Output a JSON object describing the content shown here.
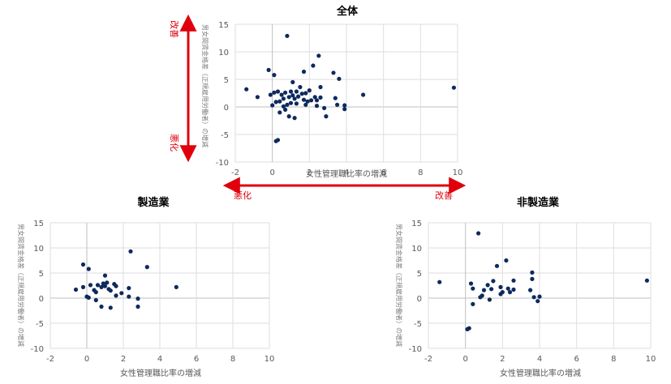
{
  "annotations": {
    "improve_label": "改善",
    "worsen_label": "悪化",
    "arrow_color": "#e0000b"
  },
  "colors": {
    "marker": "#0d2a5e",
    "grid": "#dedede",
    "axis": "#bfbfbf",
    "tick_text": "#595959",
    "ylabel_text": "#7f7f7f"
  },
  "chart_data": [
    {
      "id": "overall",
      "type": "scatter",
      "title": "全体",
      "xlabel": "女性管理職比率の増減",
      "ylabel": "男女間賃金格差（正規雇用労働者）の増減",
      "xlim": [
        -2,
        10
      ],
      "ylim": [
        -10,
        15
      ],
      "xticks": [
        -2,
        0,
        2,
        4,
        6,
        8,
        10
      ],
      "yticks": [
        -10,
        -5,
        0,
        5,
        10,
        15
      ],
      "grid": true,
      "points": [
        [
          -1.4,
          3.2
        ],
        [
          -0.8,
          1.8
        ],
        [
          -0.2,
          6.7
        ],
        [
          -0.1,
          2.2
        ],
        [
          0.0,
          0.3
        ],
        [
          0.1,
          5.8
        ],
        [
          0.1,
          2.6
        ],
        [
          0.2,
          0.9
        ],
        [
          0.2,
          -6.2
        ],
        [
          0.3,
          -6.0
        ],
        [
          0.3,
          2.8
        ],
        [
          0.4,
          1.0
        ],
        [
          0.4,
          -1.0
        ],
        [
          0.5,
          2.2
        ],
        [
          0.6,
          1.5
        ],
        [
          0.6,
          0.1
        ],
        [
          0.7,
          2.6
        ],
        [
          0.7,
          -0.5
        ],
        [
          0.8,
          12.9
        ],
        [
          0.8,
          0.4
        ],
        [
          0.9,
          1.8
        ],
        [
          0.9,
          -1.7
        ],
        [
          1.0,
          2.8
        ],
        [
          1.0,
          0.7
        ],
        [
          1.1,
          4.5
        ],
        [
          1.1,
          2.1
        ],
        [
          1.2,
          1.5
        ],
        [
          1.2,
          -2.0
        ],
        [
          1.3,
          2.8
        ],
        [
          1.3,
          0.6
        ],
        [
          1.4,
          1.9
        ],
        [
          1.5,
          3.6
        ],
        [
          1.6,
          2.4
        ],
        [
          1.7,
          1.3
        ],
        [
          1.7,
          6.4
        ],
        [
          1.8,
          2.5
        ],
        [
          1.8,
          0.4
        ],
        [
          1.9,
          1.0
        ],
        [
          2.0,
          3.0
        ],
        [
          2.1,
          1.2
        ],
        [
          2.2,
          7.5
        ],
        [
          2.3,
          1.8
        ],
        [
          2.4,
          1.2
        ],
        [
          2.4,
          0.2
        ],
        [
          2.5,
          9.3
        ],
        [
          2.6,
          3.6
        ],
        [
          2.6,
          1.7
        ],
        [
          2.8,
          -0.2
        ],
        [
          2.9,
          -1.7
        ],
        [
          3.3,
          6.2
        ],
        [
          3.4,
          1.6
        ],
        [
          3.5,
          0.4
        ],
        [
          3.6,
          5.1
        ],
        [
          3.9,
          0.3
        ],
        [
          3.9,
          -0.4
        ],
        [
          4.9,
          2.2
        ],
        [
          9.8,
          3.5
        ]
      ]
    },
    {
      "id": "manufacturing",
      "type": "scatter",
      "title": "製造業",
      "xlabel": "女性管理職比率の増減",
      "ylabel": "男女間賃金格差（正規雇用労働者）の増減",
      "xlim": [
        -2,
        10
      ],
      "ylim": [
        -10,
        15
      ],
      "xticks": [
        -2,
        0,
        2,
        4,
        6,
        8,
        10
      ],
      "yticks": [
        -10,
        -5,
        0,
        5,
        10,
        15
      ],
      "grid": true,
      "points": [
        [
          -0.6,
          1.7
        ],
        [
          -0.2,
          6.7
        ],
        [
          -0.2,
          2.2
        ],
        [
          0.0,
          0.3
        ],
        [
          0.1,
          5.8
        ],
        [
          0.1,
          0.1
        ],
        [
          0.2,
          2.6
        ],
        [
          0.4,
          1.6
        ],
        [
          0.5,
          1.2
        ],
        [
          0.5,
          -0.4
        ],
        [
          0.6,
          2.6
        ],
        [
          0.8,
          2.2
        ],
        [
          0.8,
          -1.7
        ],
        [
          0.9,
          2.9
        ],
        [
          1.0,
          4.5
        ],
        [
          1.0,
          2.4
        ],
        [
          1.1,
          3.1
        ],
        [
          1.2,
          1.8
        ],
        [
          1.3,
          1.5
        ],
        [
          1.3,
          -1.9
        ],
        [
          1.5,
          2.8
        ],
        [
          1.6,
          2.4
        ],
        [
          1.6,
          0.5
        ],
        [
          1.9,
          1.0
        ],
        [
          2.3,
          2.0
        ],
        [
          2.3,
          0.3
        ],
        [
          2.4,
          9.3
        ],
        [
          2.8,
          -0.1
        ],
        [
          2.8,
          -1.7
        ],
        [
          3.3,
          6.2
        ],
        [
          4.9,
          2.2
        ]
      ]
    },
    {
      "id": "non_manufacturing",
      "type": "scatter",
      "title": "非製造業",
      "xlabel": "女性管理職比率の増減",
      "ylabel": "男女間賃金格差（正規雇用労働者）の増減",
      "xlim": [
        -2,
        10
      ],
      "ylim": [
        -10,
        15
      ],
      "xticks": [
        -2,
        0,
        2,
        4,
        6,
        8,
        10
      ],
      "yticks": [
        -10,
        -5,
        0,
        5,
        10,
        15
      ],
      "grid": true,
      "points": [
        [
          -1.4,
          3.2
        ],
        [
          0.1,
          -6.2
        ],
        [
          0.2,
          -6.0
        ],
        [
          0.3,
          2.9
        ],
        [
          0.4,
          1.9
        ],
        [
          0.4,
          -1.2
        ],
        [
          0.7,
          12.9
        ],
        [
          0.8,
          0.2
        ],
        [
          0.9,
          0.5
        ],
        [
          1.0,
          1.6
        ],
        [
          1.2,
          2.6
        ],
        [
          1.3,
          -0.3
        ],
        [
          1.4,
          1.8
        ],
        [
          1.5,
          3.4
        ],
        [
          1.7,
          6.4
        ],
        [
          1.9,
          2.2
        ],
        [
          1.9,
          0.8
        ],
        [
          2.0,
          1.2
        ],
        [
          2.2,
          7.5
        ],
        [
          2.3,
          1.9
        ],
        [
          2.4,
          1.2
        ],
        [
          2.6,
          3.5
        ],
        [
          2.6,
          1.7
        ],
        [
          3.5,
          1.6
        ],
        [
          3.6,
          5.1
        ],
        [
          3.6,
          3.8
        ],
        [
          3.7,
          0.2
        ],
        [
          3.9,
          -0.6
        ],
        [
          4.0,
          0.3
        ],
        [
          9.8,
          3.5
        ]
      ]
    }
  ]
}
